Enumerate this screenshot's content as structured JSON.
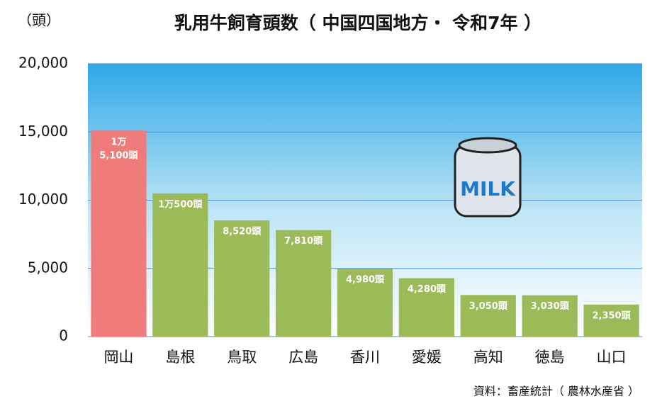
{
  "chart_data": {
    "type": "bar",
    "title": "乳用牛飼育頭数（ 中国四国地方・ 令和7年 ）",
    "y_unit_label": "（頭）",
    "source": "資料：畜産統計（ 農林水産省 ）",
    "illustration_text": "MILK",
    "categories": [
      "岡山",
      "島根",
      "鳥取",
      "広島",
      "香川",
      "愛媛",
      "高知",
      "徳島",
      "山口"
    ],
    "values": [
      15100,
      10500,
      8520,
      7810,
      4980,
      4280,
      3050,
      3030,
      2350
    ],
    "value_labels": [
      "1万\n5,100頭",
      "1万500頭",
      "8,520頭",
      "7,810頭",
      "4,980頭",
      "4,280頭",
      "3,050頭",
      "3,030頭",
      "2,350頭"
    ],
    "colors": [
      "#f07b7b",
      "#9bbb59",
      "#9bbb59",
      "#9bbb59",
      "#9bbb59",
      "#9bbb59",
      "#9bbb59",
      "#9bbb59",
      "#9bbb59"
    ],
    "ylim": [
      0,
      20000
    ],
    "yticks": [
      0,
      {
        "value": 5000,
        "label": "5,000"
      },
      {
        "value": 10000,
        "label": "10,000"
      },
      {
        "value": 15000,
        "label": "15,000"
      },
      {
        "value": 20000,
        "label": "20,000"
      }
    ],
    "grid": true
  }
}
